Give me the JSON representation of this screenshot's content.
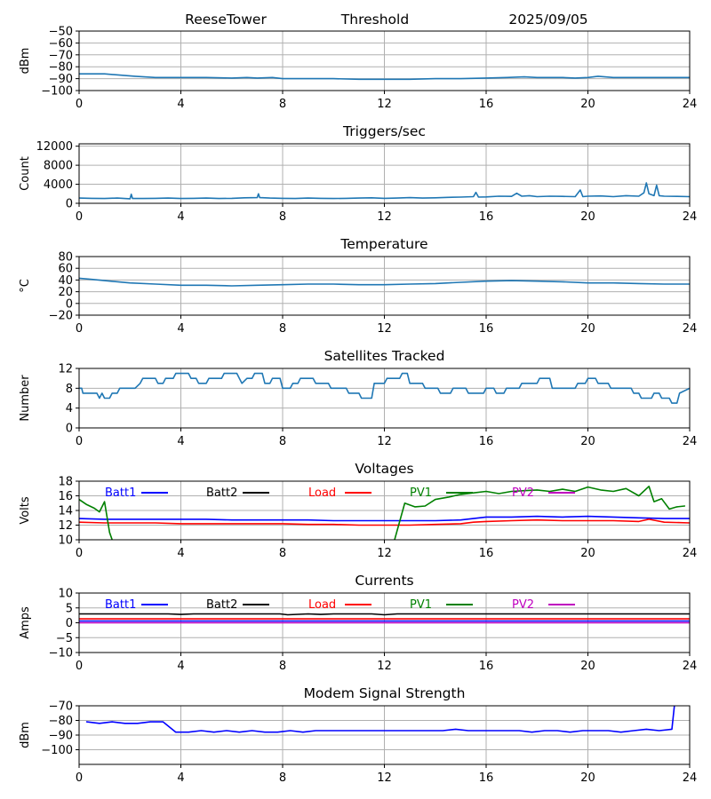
{
  "header": {
    "site": "ReeseTower",
    "title": "Threshold",
    "date": "2025/09/05"
  },
  "colors": {
    "default_series": "#1f77b4",
    "grid": "#b0b0b0",
    "batt1": "#0000ff",
    "batt2": "#000000",
    "load": "#ff0000",
    "pv1": "#008000",
    "pv2": "#bf00bf"
  },
  "chart_data": [
    {
      "id": "threshold",
      "type": "line",
      "title": "",
      "xlabel": "",
      "ylabel": "dBm",
      "xlim": [
        0,
        24
      ],
      "ylim": [
        -100,
        -50
      ],
      "xticks": [
        0,
        4,
        8,
        12,
        16,
        20,
        24
      ],
      "yticks": [
        -100,
        -90,
        -80,
        -70,
        -60,
        -50
      ],
      "grid": true,
      "series": [
        {
          "color": "#1f77b4",
          "x": [
            0,
            1,
            1.6,
            2.2,
            3,
            4,
            5,
            6,
            6.6,
            7,
            7.6,
            8,
            9,
            10,
            11,
            12,
            13,
            14,
            15,
            16,
            16.8,
            17.5,
            18,
            19,
            19.5,
            20,
            20.4,
            21,
            22,
            23,
            24
          ],
          "y": [
            -86,
            -86,
            -87,
            -88,
            -89,
            -89,
            -89,
            -89.5,
            -89,
            -89.5,
            -89,
            -90,
            -90,
            -90,
            -90.5,
            -90.5,
            -90.5,
            -90,
            -90,
            -89.5,
            -89,
            -88.5,
            -89,
            -89,
            -89.5,
            -89,
            -88,
            -89,
            -89,
            -89,
            -89
          ]
        }
      ]
    },
    {
      "id": "triggers",
      "type": "line",
      "title": "Triggers/sec",
      "xlabel": "",
      "ylabel": "Count",
      "xlim": [
        0,
        24
      ],
      "ylim": [
        0,
        12500
      ],
      "xticks": [
        0,
        4,
        8,
        12,
        16,
        20,
        24
      ],
      "yticks": [
        0,
        4000,
        8000,
        12000
      ],
      "grid": true,
      "series": [
        {
          "color": "#1f77b4",
          "x": [
            0,
            0.5,
            1,
            1.5,
            2,
            2.05,
            2.1,
            2.5,
            3,
            3.5,
            4,
            4.5,
            5,
            5.5,
            6,
            6.5,
            7,
            7.05,
            7.1,
            7.5,
            8,
            8.5,
            9,
            9.5,
            10,
            10.5,
            11,
            11.5,
            12,
            12.5,
            13,
            13.5,
            14,
            14.5,
            15,
            15.5,
            15.6,
            15.7,
            16,
            16.5,
            17,
            17.2,
            17.4,
            17.7,
            18,
            18.5,
            19,
            19.5,
            19.7,
            19.8,
            20,
            20.5,
            21,
            21.5,
            22,
            22.2,
            22.3,
            22.4,
            22.6,
            22.7,
            22.8,
            23,
            23.5,
            24
          ],
          "y": [
            1100,
            1050,
            1000,
            1100,
            950,
            1900,
            1000,
            1000,
            1050,
            1100,
            1000,
            1050,
            1100,
            1000,
            1050,
            1150,
            1200,
            2000,
            1200,
            1100,
            1050,
            1000,
            1100,
            1050,
            1000,
            1050,
            1100,
            1150,
            1050,
            1100,
            1200,
            1100,
            1150,
            1250,
            1300,
            1400,
            2300,
            1300,
            1350,
            1500,
            1450,
            2100,
            1500,
            1600,
            1400,
            1500,
            1450,
            1400,
            2800,
            1400,
            1500,
            1550,
            1400,
            1600,
            1500,
            2200,
            4300,
            2000,
            1600,
            3800,
            1600,
            1500,
            1450,
            1400
          ]
        }
      ]
    },
    {
      "id": "temperature",
      "type": "line",
      "title": "Temperature",
      "xlabel": "",
      "ylabel": "°C",
      "xlim": [
        0,
        24
      ],
      "ylim": [
        -20,
        80
      ],
      "xticks": [
        0,
        4,
        8,
        12,
        16,
        20,
        24
      ],
      "yticks": [
        -20,
        0,
        20,
        40,
        60,
        80
      ],
      "grid": true,
      "series": [
        {
          "color": "#1f77b4",
          "x": [
            0,
            0.5,
            1,
            2,
            3,
            4,
            5,
            6,
            7,
            8,
            9,
            10,
            11,
            12,
            13,
            14,
            15,
            16,
            17,
            18,
            19,
            20,
            21,
            22,
            23,
            24
          ],
          "y": [
            43,
            41,
            39,
            35,
            33,
            31,
            31,
            30,
            31,
            32,
            33,
            33,
            32,
            32,
            33,
            34,
            36,
            38,
            39,
            38,
            37,
            35,
            35,
            34,
            33,
            33
          ]
        }
      ]
    },
    {
      "id": "satellites",
      "type": "line",
      "title": "Satellites Tracked",
      "xlabel": "",
      "ylabel": "Number",
      "xlim": [
        0,
        24
      ],
      "ylim": [
        0,
        12
      ],
      "xticks": [
        0,
        4,
        8,
        12,
        16,
        20,
        24
      ],
      "yticks": [
        0,
        4,
        8,
        12
      ],
      "grid": true,
      "series": [
        {
          "color": "#1f77b4",
          "x": [
            0,
            0.1,
            0.15,
            0.7,
            0.8,
            0.9,
            1.0,
            1.1,
            1.2,
            1.3,
            1.5,
            1.6,
            2.2,
            2.4,
            2.5,
            3.0,
            3.1,
            3.3,
            3.4,
            3.7,
            3.8,
            4.3,
            4.4,
            4.6,
            4.7,
            5.0,
            5.1,
            5.6,
            5.7,
            6.2,
            6.3,
            6.4,
            6.6,
            6.8,
            6.9,
            7.2,
            7.3,
            7.5,
            7.6,
            7.9,
            8.0,
            8.3,
            8.4,
            8.6,
            8.7,
            9.2,
            9.3,
            9.8,
            9.9,
            10.5,
            10.6,
            11.0,
            11.1,
            11.5,
            11.6,
            12.0,
            12.1,
            12.6,
            12.7,
            12.9,
            13.0,
            13.5,
            13.6,
            14.1,
            14.2,
            14.6,
            14.7,
            15.2,
            15.3,
            15.9,
            16.0,
            16.3,
            16.4,
            16.7,
            16.8,
            17.3,
            17.4,
            18.0,
            18.1,
            18.5,
            18.6,
            19.5,
            19.6,
            19.9,
            20.0,
            20.3,
            20.4,
            20.8,
            20.9,
            21.7,
            21.8,
            22.0,
            22.1,
            22.5,
            22.6,
            22.8,
            22.9,
            23.2,
            23.3,
            23.5,
            23.6,
            24
          ],
          "y": [
            8,
            8,
            7,
            7,
            6,
            7,
            6,
            6,
            6,
            7,
            7,
            8,
            8,
            9,
            10,
            10,
            9,
            9,
            10,
            10,
            11,
            11,
            10,
            10,
            9,
            9,
            10,
            10,
            11,
            11,
            10,
            9,
            10,
            10,
            11,
            11,
            9,
            9,
            10,
            10,
            8,
            8,
            9,
            9,
            10,
            10,
            9,
            9,
            8,
            8,
            7,
            7,
            6,
            6,
            9,
            9,
            10,
            10,
            11,
            11,
            9,
            9,
            8,
            8,
            7,
            7,
            8,
            8,
            7,
            7,
            8,
            8,
            7,
            7,
            8,
            8,
            9,
            9,
            10,
            10,
            8,
            8,
            9,
            9,
            10,
            10,
            9,
            9,
            8,
            8,
            7,
            7,
            6,
            6,
            7,
            7,
            6,
            6,
            5,
            5,
            7,
            8
          ]
        }
      ]
    },
    {
      "id": "voltages",
      "type": "line",
      "title": "Voltages",
      "xlabel": "",
      "ylabel": "Volts",
      "xlim": [
        0,
        24
      ],
      "ylim": [
        10,
        18
      ],
      "xticks": [
        0,
        4,
        8,
        12,
        16,
        20,
        24
      ],
      "yticks": [
        10,
        12,
        14,
        16,
        18
      ],
      "grid": true,
      "legend_position": "inline-top",
      "series": [
        {
          "name": "Batt1",
          "color": "#0000ff",
          "x": [
            0,
            1,
            2,
            3,
            4,
            5,
            6,
            7,
            8,
            9,
            10,
            11,
            12,
            13,
            14,
            15,
            15.5,
            16,
            17,
            18,
            19,
            20,
            21,
            22,
            23,
            24
          ],
          "y": [
            12.9,
            12.8,
            12.8,
            12.8,
            12.8,
            12.8,
            12.7,
            12.7,
            12.7,
            12.7,
            12.6,
            12.6,
            12.6,
            12.6,
            12.6,
            12.7,
            12.9,
            13.1,
            13.1,
            13.2,
            13.1,
            13.2,
            13.1,
            13.0,
            12.9,
            12.9
          ]
        },
        {
          "name": "Batt2",
          "color": "#000000",
          "x": [],
          "y": []
        },
        {
          "name": "Load",
          "color": "#ff0000",
          "x": [
            0,
            1,
            2,
            3,
            4,
            5,
            6,
            7,
            8,
            9,
            10,
            11,
            12,
            13,
            14,
            15,
            15.5,
            16,
            17,
            18,
            19,
            20,
            21,
            22,
            22.4,
            23,
            24
          ],
          "y": [
            12.4,
            12.3,
            12.3,
            12.3,
            12.2,
            12.2,
            12.2,
            12.2,
            12.2,
            12.1,
            12.1,
            12.0,
            12.0,
            12.0,
            12.1,
            12.2,
            12.4,
            12.5,
            12.6,
            12.7,
            12.6,
            12.6,
            12.6,
            12.5,
            12.8,
            12.4,
            12.3
          ]
        },
        {
          "name": "PV1",
          "color": "#008000",
          "x": [
            0,
            0.3,
            0.6,
            0.8,
            1.0,
            1.2,
            1.3
          ],
          "y": [
            15.5,
            14.8,
            14.3,
            13.8,
            15.2,
            11.0,
            10.0
          ],
          "x2": [
            12.4,
            12.6,
            12.8,
            13.2,
            13.6,
            14.0,
            14.5,
            15.0,
            15.5,
            16.0,
            16.5,
            17.0,
            17.5,
            18.0,
            18.5,
            19.0,
            19.5,
            20.0,
            20.5,
            21.0,
            21.5,
            22.0,
            22.4,
            22.6,
            22.9,
            23.2,
            23.5,
            23.8
          ],
          "y2": [
            10.0,
            12.5,
            15.0,
            14.5,
            14.6,
            15.5,
            15.8,
            16.2,
            16.4,
            16.6,
            16.3,
            16.6,
            16.7,
            16.8,
            16.6,
            16.9,
            16.6,
            17.2,
            16.8,
            16.6,
            17.0,
            16.0,
            17.3,
            15.2,
            15.6,
            14.2,
            14.5,
            14.6
          ]
        },
        {
          "name": "PV2",
          "color": "#bf00bf",
          "x": [],
          "y": []
        }
      ]
    },
    {
      "id": "currents",
      "type": "line",
      "title": "Currents",
      "xlabel": "",
      "ylabel": "Amps",
      "xlim": [
        0,
        24
      ],
      "ylim": [
        -10,
        10
      ],
      "xticks": [
        0,
        4,
        8,
        12,
        16,
        20,
        24
      ],
      "yticks": [
        -10,
        -5,
        0,
        5,
        10
      ],
      "grid": true,
      "legend_position": "inline-top",
      "series": [
        {
          "name": "Batt1",
          "color": "#0000ff",
          "x": [
            0,
            24
          ],
          "y": [
            0.6,
            0.6
          ]
        },
        {
          "name": "Batt2",
          "color": "#000000",
          "x": [
            0,
            3.5,
            4,
            4.5,
            5,
            7.9,
            8.2,
            9,
            9.5,
            10,
            11.5,
            12,
            12.5,
            24
          ],
          "y": [
            3.0,
            3.0,
            2.8,
            3.0,
            3.0,
            3.0,
            2.7,
            3.0,
            2.8,
            3.0,
            3.0,
            2.7,
            3.0,
            3.0
          ]
        },
        {
          "name": "Load",
          "color": "#ff0000",
          "x": [
            0,
            24
          ],
          "y": [
            1.3,
            1.3
          ]
        },
        {
          "name": "PV1",
          "color": "#008000",
          "x": [],
          "y": []
        },
        {
          "name": "PV2",
          "color": "#bf00bf",
          "x": [
            0,
            24
          ],
          "y": [
            0.0,
            0.0
          ]
        }
      ]
    },
    {
      "id": "modem",
      "type": "line",
      "title": "Modem Signal Strength",
      "xlabel": "",
      "ylabel": "dBm",
      "xlim": [
        0,
        24
      ],
      "ylim": [
        -110,
        -70
      ],
      "xticks": [
        0,
        4,
        8,
        12,
        16,
        20,
        24
      ],
      "yticks": [
        -100,
        -90,
        -80,
        -70
      ],
      "grid": true,
      "series": [
        {
          "color": "#0000ff",
          "x": [
            0.3,
            0.8,
            1.3,
            1.8,
            2.3,
            2.8,
            3.3,
            3.8,
            4.3,
            4.8,
            5.3,
            5.8,
            6.3,
            6.8,
            7.3,
            7.8,
            8.3,
            8.8,
            9.3,
            9.8,
            10.3,
            10.8,
            11.3,
            11.8,
            12.3,
            12.8,
            13.3,
            13.8,
            14.3,
            14.8,
            15.3,
            15.8,
            16.3,
            16.8,
            17.3,
            17.8,
            18.3,
            18.8,
            19.3,
            19.8,
            20.3,
            20.8,
            21.3,
            21.8,
            22.3,
            22.8,
            23.3,
            23.4
          ],
          "y": [
            -81,
            -82,
            -81,
            -82,
            -82,
            -81,
            -81,
            -88,
            -88,
            -87,
            -88,
            -87,
            -88,
            -87,
            -88,
            -88,
            -87,
            -88,
            -87,
            -87,
            -87,
            -87,
            -87,
            -87,
            -87,
            -87,
            -87,
            -87,
            -87,
            -86,
            -87,
            -87,
            -87,
            -87,
            -87,
            -88,
            -87,
            -87,
            -88,
            -87,
            -87,
            -87,
            -88,
            -87,
            -86,
            -87,
            -86,
            -70
          ]
        }
      ]
    }
  ]
}
